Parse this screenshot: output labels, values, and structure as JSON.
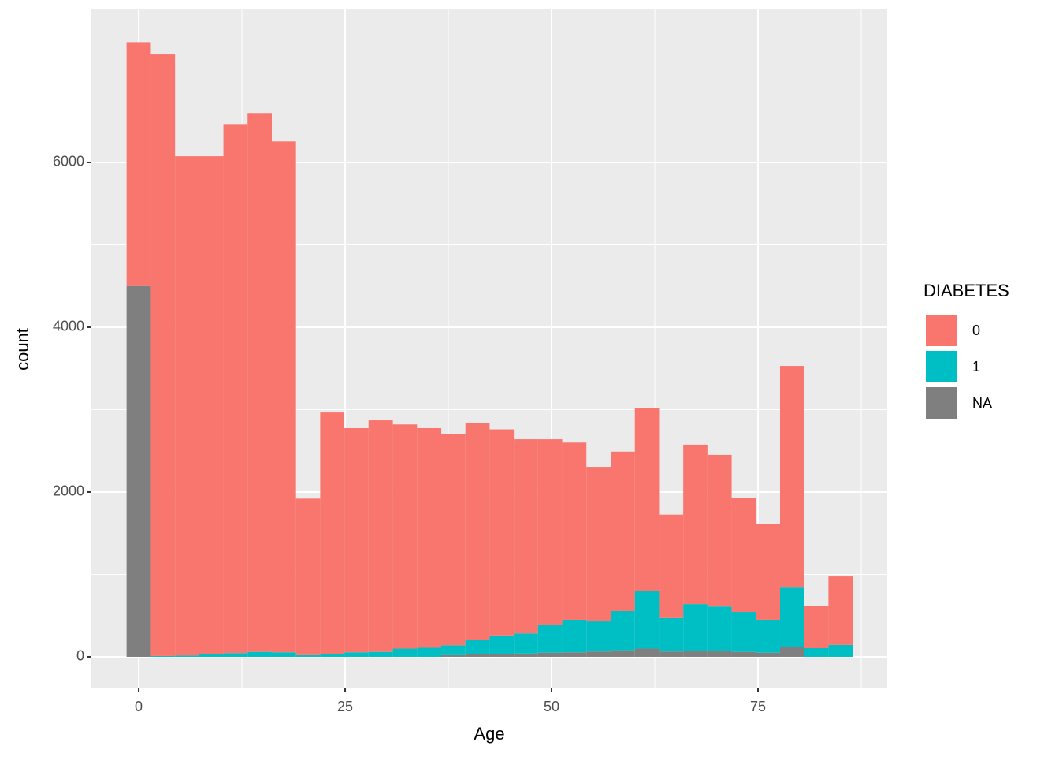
{
  "chart_data": {
    "type": "histogram",
    "x_label": "Age",
    "y_label": "count",
    "legend_title": "DIABETES",
    "legend_position": "right",
    "bins": [
      -1.47,
      1.47,
      4.4,
      7.33,
      10.26,
      13.19,
      16.12,
      19.05,
      21.98,
      24.91,
      27.84,
      30.78,
      33.71,
      36.64,
      39.57,
      42.5,
      45.43,
      48.36,
      51.29,
      54.22,
      57.16,
      60.09,
      63.02,
      65.95,
      68.88,
      71.81,
      74.74,
      77.67,
      80.6,
      83.53,
      86.47
    ],
    "series": [
      {
        "name": "NA",
        "color": "#7f7f7f",
        "values": [
          4500,
          0,
          0,
          0,
          0,
          0,
          0,
          0,
          0,
          0,
          0,
          0,
          0,
          20,
          30,
          35,
          40,
          50,
          55,
          65,
          80,
          100,
          65,
          75,
          70,
          60,
          50,
          120,
          0,
          0
        ]
      },
      {
        "name": "1",
        "color": "#00bfc4",
        "values": [
          0,
          10,
          15,
          35,
          45,
          60,
          55,
          20,
          35,
          55,
          60,
          100,
          110,
          120,
          180,
          225,
          245,
          340,
          395,
          365,
          475,
          695,
          405,
          565,
          540,
          485,
          400,
          720,
          105,
          145
        ]
      },
      {
        "name": "0",
        "color": "#f8766d",
        "values": [
          2960,
          7300,
          6060,
          6040,
          6420,
          6540,
          6200,
          1900,
          2930,
          2720,
          2810,
          2720,
          2665,
          2560,
          2630,
          2500,
          2355,
          2250,
          2150,
          1875,
          1935,
          2220,
          1255,
          1935,
          1840,
          1380,
          1165,
          2690,
          515,
          830
        ]
      }
    ],
    "xlim": [
      -5.73,
      90.65
    ],
    "xticks": [
      0,
      25,
      50,
      75
    ],
    "ylim": [
      -383,
      7856
    ],
    "yticks": [
      0,
      2000,
      4000,
      6000
    ],
    "grid": true,
    "panel_background": "#ebebeb"
  }
}
